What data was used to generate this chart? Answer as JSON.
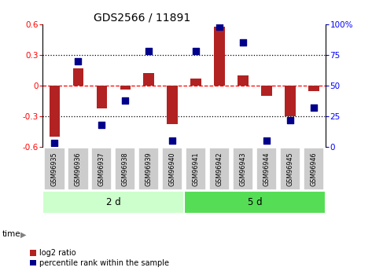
{
  "title": "GDS2566 / 11891",
  "samples": [
    "GSM96935",
    "GSM96936",
    "GSM96937",
    "GSM96938",
    "GSM96939",
    "GSM96940",
    "GSM96941",
    "GSM96942",
    "GSM96943",
    "GSM96944",
    "GSM96945",
    "GSM96946"
  ],
  "log2_ratio": [
    -0.5,
    0.17,
    -0.22,
    -0.04,
    0.12,
    -0.38,
    0.07,
    0.58,
    0.1,
    -0.1,
    -0.3,
    -0.05
  ],
  "percentile_rank": [
    3,
    70,
    18,
    38,
    78,
    5,
    78,
    98,
    85,
    5,
    22,
    32
  ],
  "bar_color": "#b22222",
  "dot_color": "#00008b",
  "group1_label": "2 d",
  "group2_label": "5 d",
  "group1_indices": [
    0,
    5
  ],
  "group2_indices": [
    6,
    11
  ],
  "ylim_left": [
    -0.6,
    0.6
  ],
  "ylim_right": [
    0,
    100
  ],
  "yticks_left": [
    -0.6,
    -0.3,
    0.0,
    0.3,
    0.6
  ],
  "yticks_right": [
    0,
    25,
    50,
    75,
    100
  ],
  "dotted_lines_black": [
    -0.3,
    0.3
  ],
  "dashed_line_red": 0.0,
  "bg_color": "#ffffff",
  "bar_width": 0.45,
  "dot_size": 28,
  "group_bg1": "#ccffcc",
  "group_bg2": "#55dd55",
  "sample_box_color": "#cccccc",
  "legend_label1": "log2 ratio",
  "legend_label2": "percentile rank within the sample"
}
